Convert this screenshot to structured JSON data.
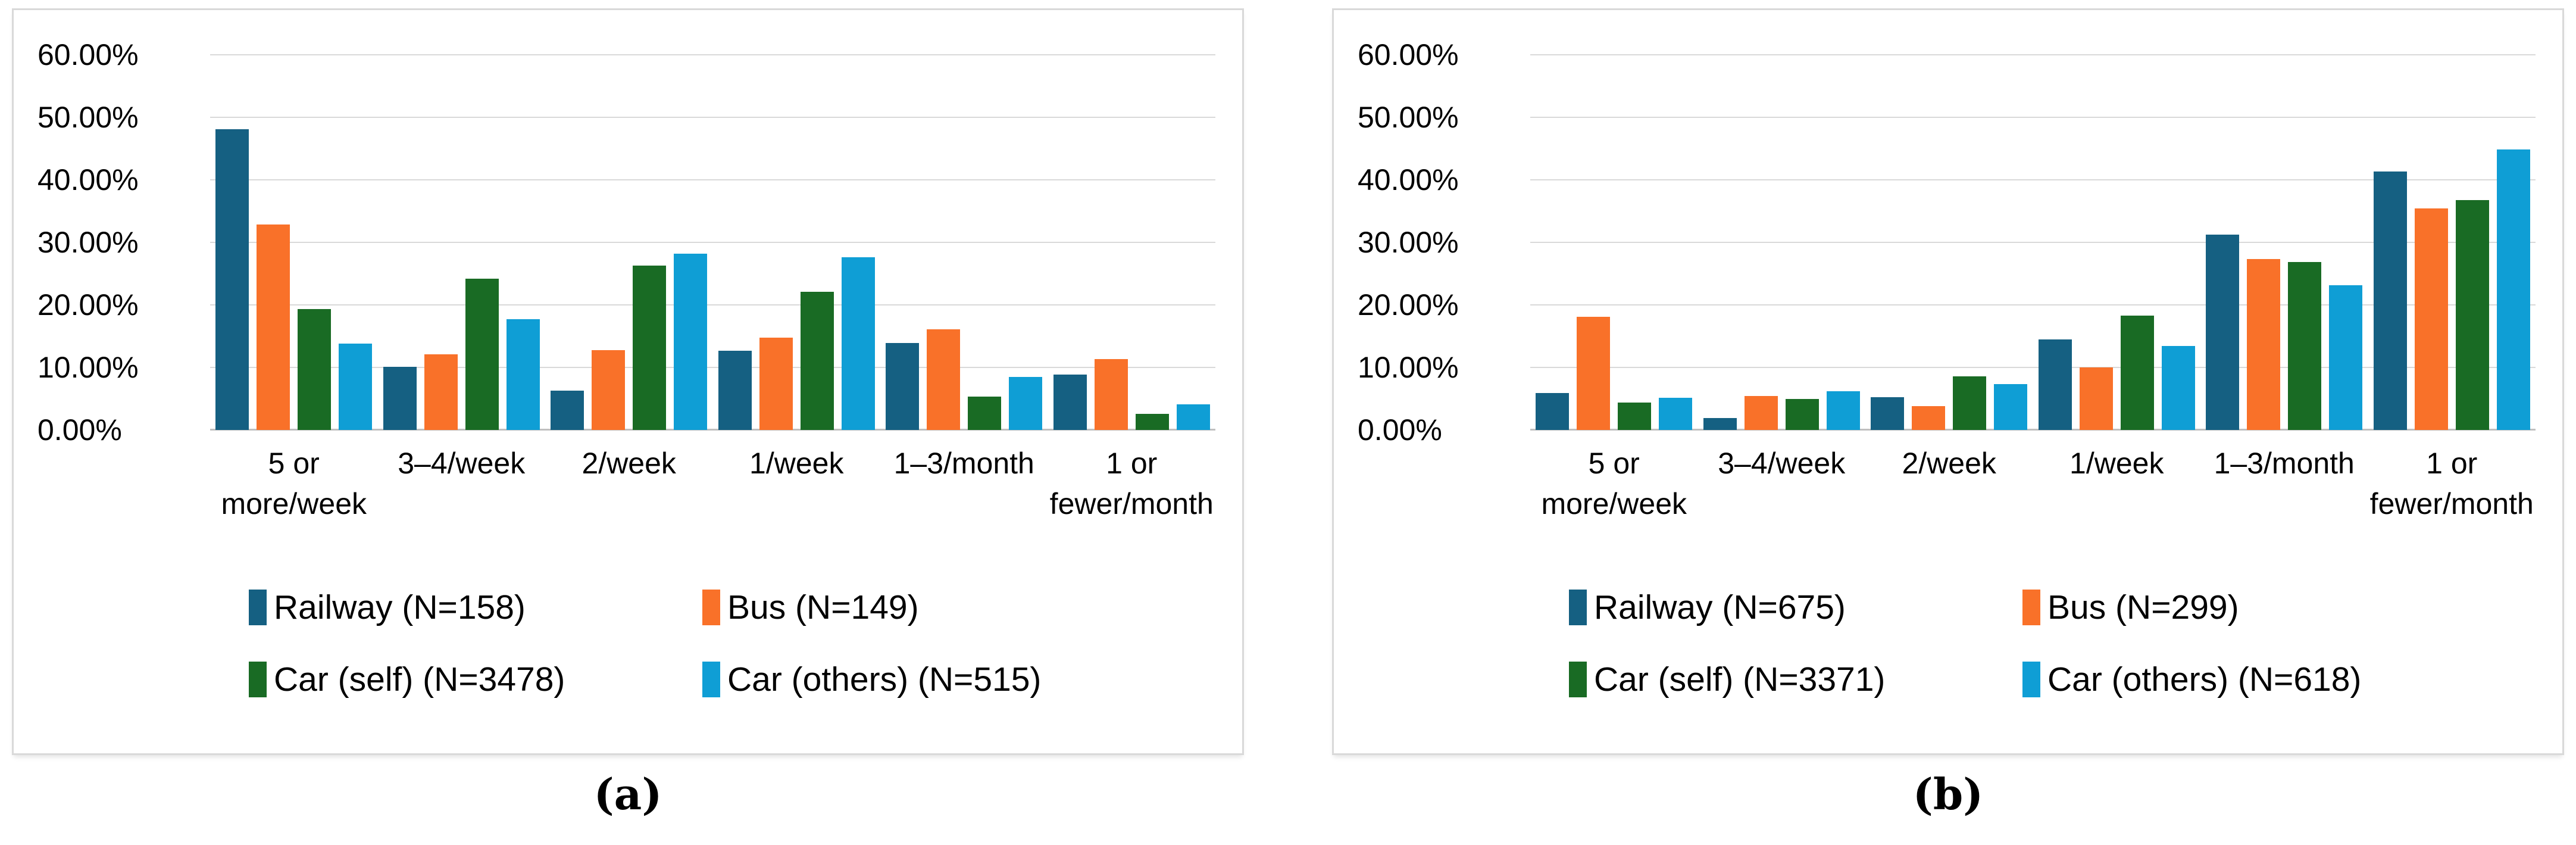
{
  "figure": {
    "captions": {
      "a": "(a)",
      "b": "(b)"
    }
  },
  "layout_colors": {
    "grid": "#D9D9D9",
    "axis": "#BFBFBF",
    "panel_border": "#D9D9D9",
    "text": "#000000"
  },
  "chart_data": [
    {
      "type": "bar",
      "title": "",
      "xlabel": "",
      "ylabel": "",
      "ylim": [
        0,
        60
      ],
      "ytick_step": 10,
      "grid": true,
      "legend_position": "bottom",
      "caption": "(a)",
      "yticks": [
        "60.00%",
        "50.00%",
        "40.00%",
        "30.00%",
        "20.00%",
        "10.00%",
        "0.00%"
      ],
      "categories": [
        "5 or\nmore/week",
        "3–4/week",
        "2/week",
        "1/week",
        "1–3/month",
        "1 or\nfewer/month"
      ],
      "series": [
        {
          "name": "Railway (N=158)",
          "color": "#156082",
          "values": [
            48.1,
            10.1,
            6.3,
            12.7,
            13.9,
            8.9
          ]
        },
        {
          "name": "Bus (N=149)",
          "color": "#F97129",
          "values": [
            32.9,
            12.1,
            12.8,
            14.8,
            16.1,
            11.3
          ]
        },
        {
          "name": "Car (self) (N=3478)",
          "color": "#196B24",
          "values": [
            19.3,
            24.2,
            26.3,
            22.1,
            5.3,
            2.6
          ]
        },
        {
          "name": "Car (others) (N=515)",
          "color": "#0F9ED5",
          "values": [
            13.8,
            17.7,
            28.2,
            27.6,
            8.5,
            4.1
          ]
        }
      ]
    },
    {
      "type": "bar",
      "title": "",
      "xlabel": "",
      "ylabel": "",
      "ylim": [
        0,
        60
      ],
      "ytick_step": 10,
      "grid": true,
      "legend_position": "bottom",
      "caption": "(b)",
      "yticks": [
        "60.00%",
        "50.00%",
        "40.00%",
        "30.00%",
        "20.00%",
        "10.00%",
        "0.00%"
      ],
      "categories": [
        "5 or\nmore/week",
        "3–4/week",
        "2/week",
        "1/week",
        "1–3/month",
        "1 or\nfewer/month"
      ],
      "series": [
        {
          "name": "Railway (N=675)",
          "color": "#156082",
          "values": [
            5.9,
            1.9,
            5.2,
            14.5,
            31.2,
            41.3
          ]
        },
        {
          "name": "Bus (N=299)",
          "color": "#F97129",
          "values": [
            18.1,
            5.4,
            3.8,
            10.0,
            27.3,
            35.4
          ]
        },
        {
          "name": "Car (self) (N=3371)",
          "color": "#196B24",
          "values": [
            4.4,
            5.0,
            8.6,
            18.3,
            26.9,
            36.8
          ]
        },
        {
          "name": "Car (others) (N=618)",
          "color": "#0F9ED5",
          "values": [
            5.1,
            6.2,
            7.3,
            13.4,
            23.1,
            44.9
          ]
        }
      ]
    }
  ]
}
